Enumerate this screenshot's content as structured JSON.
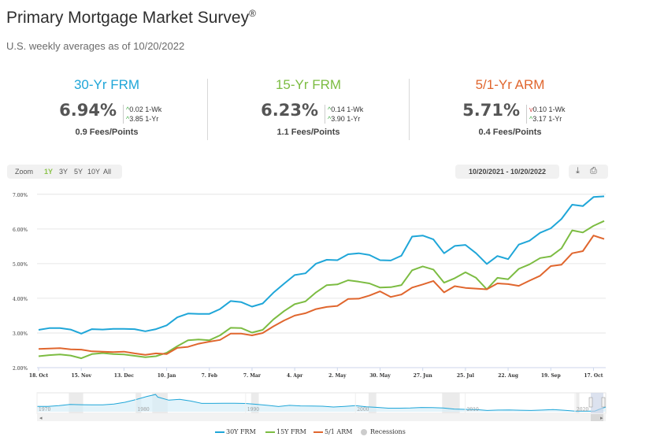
{
  "header": {
    "title": "Primary Mortgage Market Survey",
    "title_mark": "®",
    "subtitle": "U.S. weekly averages as of 10/20/2022"
  },
  "cards": [
    {
      "name": "30-Yr FRM",
      "value": "6.94%",
      "wk_dir": "up",
      "wk": "0.02 1-Wk",
      "yr_dir": "up",
      "yr": "3.85 1-Yr",
      "fees": "0.9 Fees/Points",
      "color": "#1fa6d8"
    },
    {
      "name": "15-Yr FRM",
      "value": "6.23%",
      "wk_dir": "up",
      "wk": "0.14 1-Wk",
      "yr_dir": "up",
      "yr": "3.90 1-Yr",
      "fees": "1.1 Fees/Points",
      "color": "#7cbc42"
    },
    {
      "name": "5/1-Yr ARM",
      "value": "5.71%",
      "wk_dir": "down",
      "wk": "0.10 1-Wk",
      "yr_dir": "up",
      "yr": "3.17 1-Yr",
      "fees": "0.4 Fees/Points",
      "color": "#e0662e"
    }
  ],
  "toolbar": {
    "zoom_label": "Zoom",
    "zoom_options": [
      "1Y",
      "3Y",
      "5Y",
      "10Y",
      "All"
    ],
    "zoom_selected": "1Y",
    "date_range": "10/20/2021 - 10/20/2022",
    "download_icon": "download-icon",
    "print_icon": "print-icon"
  },
  "chart_data": {
    "type": "line",
    "ylim": [
      2.0,
      7.2
    ],
    "y_ticks": [
      "2.00%",
      "3.00%",
      "4.00%",
      "5.00%",
      "6.00%",
      "7.00%"
    ],
    "x_ticks": [
      "18. Oct",
      "15. Nov",
      "13. Dec",
      "10. Jan",
      "7. Feb",
      "7. Mar",
      "4. Apr",
      "2. May",
      "30. May",
      "27. Jun",
      "25. Jul",
      "22. Aug",
      "19. Sep",
      "17. Oct"
    ],
    "x_tick_weeks": [
      0,
      4,
      8,
      12,
      16,
      20,
      24,
      28,
      32,
      36,
      40,
      44,
      48,
      52
    ],
    "grid": true,
    "legend_position": "bottom",
    "series": [
      {
        "name": "30Y FRM",
        "color": "#1fa6d8",
        "values": [
          3.09,
          3.14,
          3.14,
          3.1,
          2.98,
          3.11,
          3.1,
          3.12,
          3.12,
          3.11,
          3.05,
          3.11,
          3.22,
          3.45,
          3.56,
          3.55,
          3.55,
          3.69,
          3.92,
          3.89,
          3.76,
          3.85,
          4.16,
          4.42,
          4.67,
          4.72,
          5.0,
          5.11,
          5.1,
          5.27,
          5.3,
          5.25,
          5.1,
          5.09,
          5.23,
          5.78,
          5.81,
          5.7,
          5.3,
          5.51,
          5.54,
          5.3,
          4.99,
          5.22,
          5.13,
          5.55,
          5.66,
          5.89,
          6.02,
          6.29,
          6.7,
          6.66,
          6.92,
          6.94
        ]
      },
      {
        "name": "15Y FRM",
        "color": "#7cbc42",
        "values": [
          2.33,
          2.36,
          2.38,
          2.35,
          2.27,
          2.39,
          2.42,
          2.39,
          2.38,
          2.34,
          2.3,
          2.33,
          2.43,
          2.62,
          2.79,
          2.81,
          2.79,
          2.93,
          3.15,
          3.14,
          3.01,
          3.09,
          3.39,
          3.63,
          3.83,
          3.91,
          4.17,
          4.38,
          4.4,
          4.52,
          4.48,
          4.43,
          4.31,
          4.32,
          4.38,
          4.81,
          4.92,
          4.83,
          4.45,
          4.58,
          4.75,
          4.59,
          4.26,
          4.59,
          4.55,
          4.85,
          4.98,
          5.16,
          5.21,
          5.44,
          5.96,
          5.9,
          6.09,
          6.23
        ]
      },
      {
        "name": "5/1 ARM",
        "color": "#e0662e",
        "values": [
          2.54,
          2.55,
          2.56,
          2.53,
          2.52,
          2.47,
          2.46,
          2.45,
          2.46,
          2.41,
          2.37,
          2.41,
          2.39,
          2.57,
          2.6,
          2.69,
          2.75,
          2.8,
          2.98,
          2.98,
          2.93,
          3.0,
          3.19,
          3.36,
          3.5,
          3.57,
          3.69,
          3.75,
          3.78,
          3.98,
          3.99,
          4.08,
          4.2,
          4.04,
          4.11,
          4.31,
          4.4,
          4.5,
          4.17,
          4.35,
          4.3,
          4.28,
          4.26,
          4.43,
          4.41,
          4.36,
          4.51,
          4.65,
          4.93,
          4.97,
          5.3,
          5.36,
          5.81,
          5.71
        ]
      },
      {
        "name": "Recessions",
        "color": "#cccccc",
        "values": []
      }
    ],
    "navigator": {
      "x_ticks": [
        "1970",
        "1980",
        "1990",
        "2000",
        "2010",
        "2020"
      ],
      "x_tick_years": [
        1971,
        1980,
        1990,
        2000,
        2010,
        2020
      ],
      "year_range": [
        1971,
        2022.8
      ],
      "ylim": [
        2.5,
        18.5
      ],
      "profile": [
        [
          1971,
          7.4
        ],
        [
          1972,
          7.4
        ],
        [
          1973,
          8.1
        ],
        [
          1974,
          9.2
        ],
        [
          1975,
          9.0
        ],
        [
          1976,
          8.8
        ],
        [
          1977,
          8.8
        ],
        [
          1978,
          9.6
        ],
        [
          1979,
          11.2
        ],
        [
          1980,
          13.7
        ],
        [
          1981,
          16.6
        ],
        [
          1981.8,
          18.4
        ],
        [
          1982,
          16.0
        ],
        [
          1983,
          13.2
        ],
        [
          1984,
          13.9
        ],
        [
          1985,
          12.4
        ],
        [
          1986,
          10.2
        ],
        [
          1987,
          10.2
        ],
        [
          1988,
          10.3
        ],
        [
          1989,
          10.3
        ],
        [
          1990,
          10.1
        ],
        [
          1991,
          9.3
        ],
        [
          1992,
          8.4
        ],
        [
          1993,
          7.3
        ],
        [
          1994,
          8.4
        ],
        [
          1995,
          7.9
        ],
        [
          1996,
          7.8
        ],
        [
          1997,
          7.6
        ],
        [
          1998,
          6.9
        ],
        [
          1999,
          7.4
        ],
        [
          2000,
          8.1
        ],
        [
          2001,
          7.0
        ],
        [
          2002,
          6.5
        ],
        [
          2003,
          5.8
        ],
        [
          2004,
          5.8
        ],
        [
          2005,
          5.9
        ],
        [
          2006,
          6.4
        ],
        [
          2007,
          6.3
        ],
        [
          2008,
          6.0
        ],
        [
          2009,
          5.0
        ],
        [
          2010,
          4.7
        ],
        [
          2011,
          4.5
        ],
        [
          2012,
          3.7
        ],
        [
          2013,
          4.0
        ],
        [
          2014,
          4.2
        ],
        [
          2015,
          3.9
        ],
        [
          2016,
          3.7
        ],
        [
          2017,
          4.0
        ],
        [
          2018,
          4.5
        ],
        [
          2019,
          3.9
        ],
        [
          2020,
          3.1
        ],
        [
          2021,
          3.0
        ],
        [
          2021.8,
          3.1
        ],
        [
          2022.2,
          4.7
        ],
        [
          2022.8,
          6.9
        ]
      ],
      "recessions": [
        [
          1973.9,
          1975.2
        ],
        [
          1980.0,
          1980.5
        ],
        [
          1981.5,
          1982.9
        ],
        [
          1990.5,
          1991.2
        ],
        [
          2001.2,
          2001.9
        ],
        [
          2007.9,
          2009.5
        ],
        [
          2020.1,
          2020.4
        ]
      ]
    }
  },
  "legend": {
    "items": [
      {
        "label": "30Y FRM",
        "color": "#1fa6d8"
      },
      {
        "label": "15Y FRM",
        "color": "#7cbc42"
      },
      {
        "label": "5/1 ARM",
        "color": "#e0662e"
      },
      {
        "label": "Recessions",
        "color": "#cccccc"
      }
    ]
  }
}
